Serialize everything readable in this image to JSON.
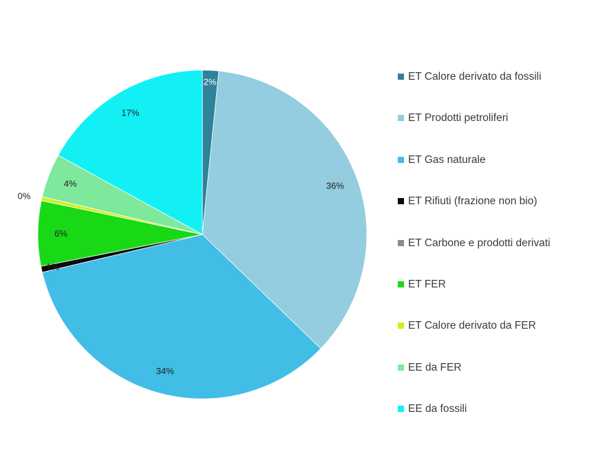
{
  "chart_data": {
    "type": "pie",
    "title": "",
    "legend_position": "right",
    "slices": [
      {
        "name": "ET Calore derivato da fossili",
        "value": 1.6,
        "label": "2%",
        "color": "#2e8299"
      },
      {
        "name": "ET Prodotti petroliferi",
        "value": 35.6,
        "label": "36%",
        "color": "#93cddf"
      },
      {
        "name": "ET Gas naturale",
        "value": 34.1,
        "label": "34%",
        "color": "#41bde6"
      },
      {
        "name": "ET Rifiuti (frazione non bio)",
        "value": 0.6,
        "label": "1%",
        "color": "#0a0a0a"
      },
      {
        "name": "ET Carbone e prodotti derivati",
        "value": 0.0,
        "label": "",
        "color": "#8c8c8c"
      },
      {
        "name": "ET FER",
        "value": 6.4,
        "label": "6%",
        "color": "#19d916"
      },
      {
        "name": "ET Calore derivato da FER",
        "value": 0.4,
        "label": "0%",
        "color": "#cdf21b"
      },
      {
        "name": "EE da FER",
        "value": 4.3,
        "label": "4%",
        "color": "#7ee89c"
      },
      {
        "name": "EE da fossili",
        "value": 17.0,
        "label": "17%",
        "color": "#12f0f5"
      }
    ]
  }
}
